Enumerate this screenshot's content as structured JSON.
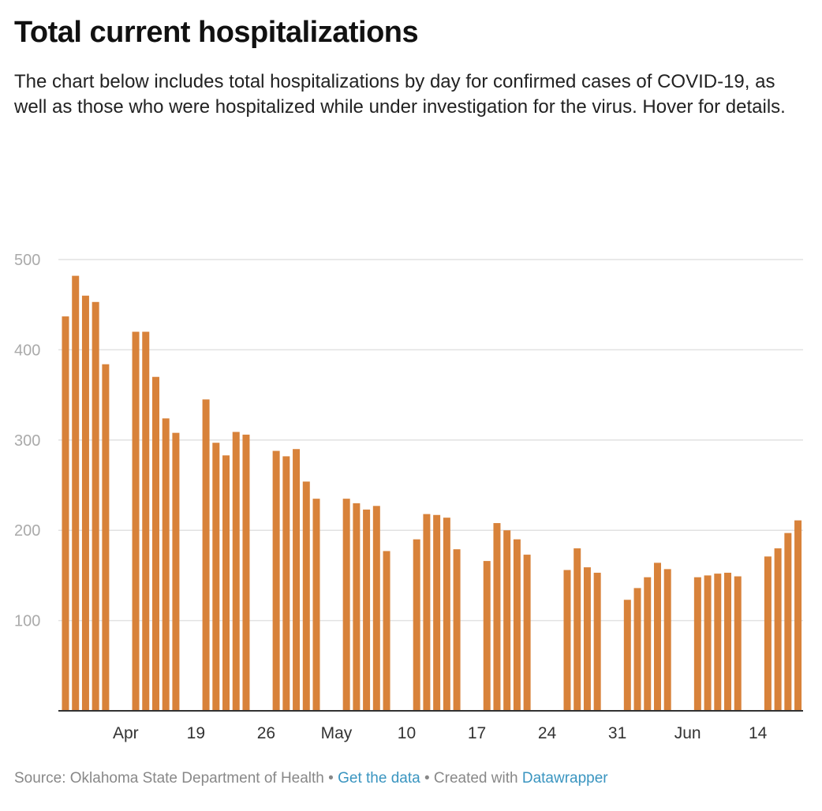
{
  "header": {
    "title": "Total current hospitalizations",
    "subtitle": "The chart below includes total hospitalizations by day for confirmed cases of COVID-19, as well as those who were hospitalized while under investigation for the virus. Hover for details."
  },
  "chart_data": {
    "type": "bar",
    "title": "Total current hospitalizations",
    "xlabel": "",
    "ylabel": "",
    "ylim": [
      0,
      500
    ],
    "yticks": [
      100,
      200,
      300,
      400,
      500
    ],
    "xticks": [
      {
        "date": "Apr 12",
        "label": "Apr"
      },
      {
        "date": "Apr 19",
        "label": "19"
      },
      {
        "date": "Apr 26",
        "label": "26"
      },
      {
        "date": "May 3",
        "label": "May"
      },
      {
        "date": "May 10",
        "label": "10"
      },
      {
        "date": "May 17",
        "label": "17"
      },
      {
        "date": "May 24",
        "label": "24"
      },
      {
        "date": "May 31",
        "label": "31"
      },
      {
        "date": "Jun 7",
        "label": "Jun"
      },
      {
        "date": "Jun 14",
        "label": "14"
      }
    ],
    "grid": true,
    "bar_color": "#d8823a",
    "categories": [
      "Apr 6",
      "Apr 7",
      "Apr 8",
      "Apr 9",
      "Apr 10",
      "Apr 13",
      "Apr 14",
      "Apr 15",
      "Apr 16",
      "Apr 17",
      "Apr 20",
      "Apr 21",
      "Apr 22",
      "Apr 23",
      "Apr 24",
      "Apr 27",
      "Apr 28",
      "Apr 29",
      "Apr 30",
      "May 1",
      "May 4",
      "May 5",
      "May 6",
      "May 7",
      "May 8",
      "May 11",
      "May 12",
      "May 13",
      "May 14",
      "May 15",
      "May 18",
      "May 19",
      "May 20",
      "May 21",
      "May 22",
      "May 26",
      "May 27",
      "May 28",
      "May 29",
      "Jun 1",
      "Jun 2",
      "Jun 3",
      "Jun 4",
      "Jun 5",
      "Jun 8",
      "Jun 9",
      "Jun 10",
      "Jun 11",
      "Jun 12",
      "Jun 15",
      "Jun 16",
      "Jun 17",
      "Jun 18"
    ],
    "values": [
      437,
      482,
      460,
      453,
      384,
      420,
      420,
      370,
      324,
      308,
      345,
      297,
      283,
      309,
      306,
      288,
      282,
      290,
      254,
      235,
      235,
      230,
      223,
      227,
      177,
      190,
      218,
      217,
      214,
      179,
      166,
      208,
      200,
      190,
      173,
      156,
      180,
      159,
      153,
      123,
      136,
      148,
      164,
      157,
      148,
      150,
      152,
      153,
      149,
      171,
      180,
      197,
      211
    ]
  },
  "footer": {
    "source": "Source: Oklahoma State Department of Health",
    "sep": " • ",
    "get_data": "Get the data",
    "created": "Created with ",
    "datawrapper": "Datawrapper"
  }
}
